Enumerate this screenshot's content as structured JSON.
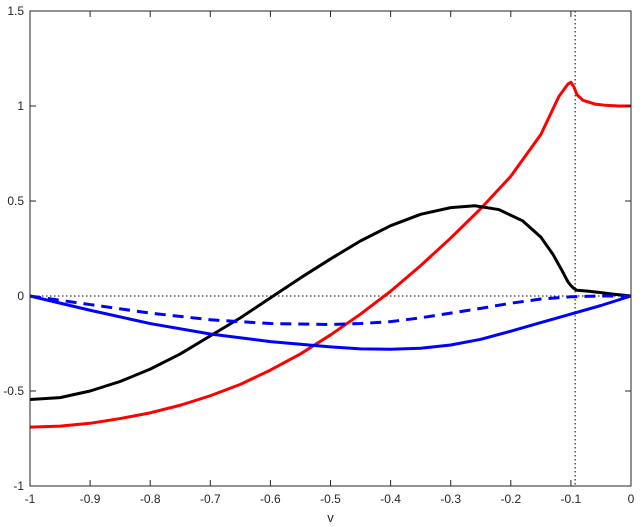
{
  "chart_data": {
    "type": "line",
    "xlabel": "v",
    "ylabel": "",
    "title": "",
    "xlim": [
      -1,
      0
    ],
    "ylim": [
      -1,
      1.5
    ],
    "xticks": [
      -1,
      -0.9,
      -0.8,
      -0.7,
      -0.6,
      -0.5,
      -0.4,
      -0.3,
      -0.2,
      -0.1,
      0
    ],
    "xtick_labels": [
      "-1",
      "-0.9",
      "-0.8",
      "-0.7",
      "-0.6",
      "-0.5",
      "-0.4",
      "-0.3",
      "-0.2",
      "-0.1",
      "0"
    ],
    "yticks": [
      -1,
      -0.5,
      0,
      0.5,
      1,
      1.5
    ],
    "ytick_labels": [
      "-1",
      "-0.5",
      "0",
      "0.5",
      "1",
      "1.5"
    ],
    "grid": false,
    "reference_lines": [
      {
        "orientation": "horizontal",
        "value": 0,
        "style": "dotted",
        "color": "#000000"
      },
      {
        "orientation": "vertical",
        "value": -0.093,
        "style": "dotted",
        "color": "#000000"
      }
    ],
    "series": [
      {
        "color": "#ff0000",
        "style": "solid",
        "x": [
          -1,
          -0.95,
          -0.9,
          -0.85,
          -0.8,
          -0.75,
          -0.7,
          -0.65,
          -0.6,
          -0.55,
          -0.5,
          -0.45,
          -0.4,
          -0.35,
          -0.3,
          -0.25,
          -0.2,
          -0.15,
          -0.12,
          -0.105,
          -0.1,
          -0.095,
          -0.09,
          -0.08,
          -0.06,
          -0.04,
          -0.02,
          0
        ],
        "y": [
          -0.69,
          -0.685,
          -0.67,
          -0.645,
          -0.615,
          -0.575,
          -0.525,
          -0.465,
          -0.39,
          -0.305,
          -0.205,
          -0.095,
          0.025,
          0.16,
          0.305,
          0.46,
          0.63,
          0.85,
          1.05,
          1.115,
          1.125,
          1.1,
          1.06,
          1.03,
          1.01,
          1.003,
          1.0,
          1.0
        ]
      },
      {
        "color": "#000000",
        "style": "solid",
        "x": [
          -1,
          -0.95,
          -0.9,
          -0.85,
          -0.8,
          -0.75,
          -0.7,
          -0.65,
          -0.6,
          -0.55,
          -0.5,
          -0.45,
          -0.4,
          -0.35,
          -0.3,
          -0.26,
          -0.22,
          -0.18,
          -0.15,
          -0.13,
          -0.115,
          -0.105,
          -0.1,
          -0.095,
          -0.09,
          -0.07,
          -0.05,
          -0.03,
          0
        ],
        "y": [
          -0.545,
          -0.535,
          -0.5,
          -0.45,
          -0.385,
          -0.305,
          -0.21,
          -0.115,
          -0.01,
          0.095,
          0.195,
          0.29,
          0.37,
          0.43,
          0.465,
          0.475,
          0.455,
          0.395,
          0.31,
          0.22,
          0.135,
          0.075,
          0.055,
          0.04,
          0.03,
          0.025,
          0.018,
          0.01,
          0
        ]
      },
      {
        "color": "#0000ff",
        "style": "solid",
        "x": [
          -1,
          -0.9,
          -0.8,
          -0.7,
          -0.6,
          -0.5,
          -0.45,
          -0.4,
          -0.35,
          -0.3,
          -0.25,
          -0.2,
          -0.15,
          -0.1,
          -0.05,
          0
        ],
        "y": [
          0,
          -0.075,
          -0.145,
          -0.2,
          -0.24,
          -0.268,
          -0.278,
          -0.28,
          -0.275,
          -0.258,
          -0.228,
          -0.185,
          -0.14,
          -0.095,
          -0.05,
          0
        ]
      },
      {
        "color": "#0000ff",
        "style": "dashed",
        "x": [
          -1,
          -0.9,
          -0.8,
          -0.7,
          -0.6,
          -0.5,
          -0.45,
          -0.4,
          -0.35,
          -0.3,
          -0.25,
          -0.2,
          -0.15,
          -0.1,
          -0.05,
          0
        ],
        "y": [
          0,
          -0.045,
          -0.09,
          -0.125,
          -0.145,
          -0.15,
          -0.145,
          -0.135,
          -0.115,
          -0.09,
          -0.065,
          -0.038,
          -0.016,
          -0.004,
          0,
          0
        ]
      }
    ]
  }
}
